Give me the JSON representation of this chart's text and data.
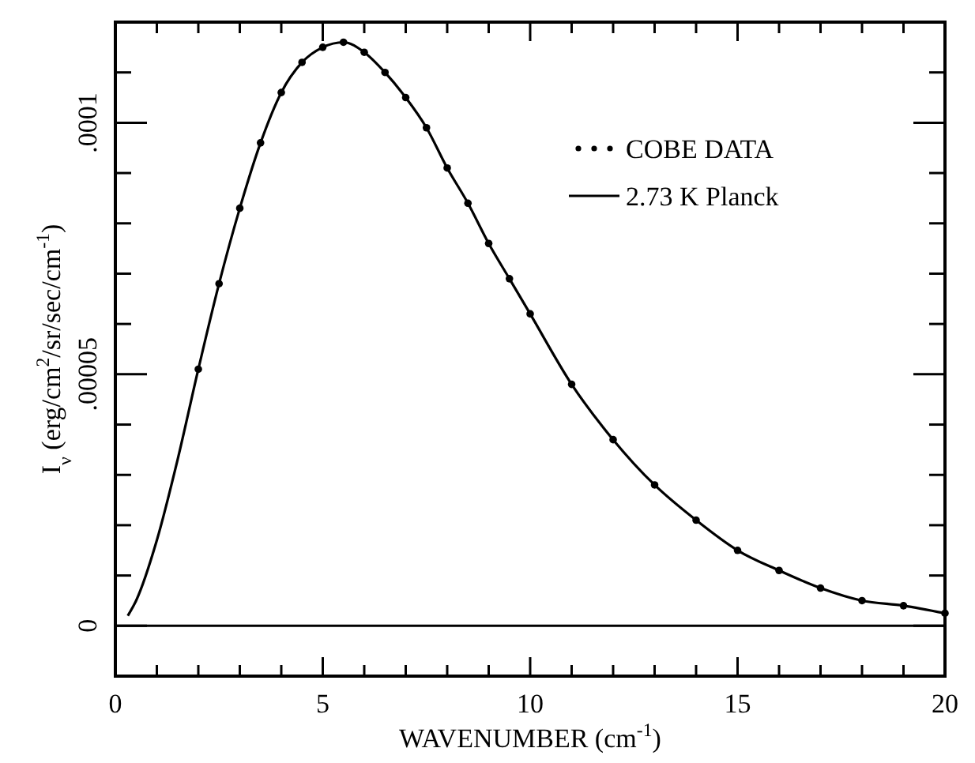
{
  "chart_data": {
    "type": "line",
    "xlabel": "WAVENUMBER (cm$^{-1}$)",
    "ylabel": "I$_{ν}$ (erg/cm$^{2}$/sr/sec/cm$^{-1}$)",
    "xlim": [
      0,
      20
    ],
    "xticks": [
      0,
      {
        "value": 1,
        "label": null
      },
      {
        "value": 2,
        "label": null
      },
      {
        "value": 3,
        "label": null
      },
      {
        "value": 4,
        "label": null
      },
      5,
      {
        "value": 6,
        "label": null
      },
      {
        "value": 7,
        "label": null
      },
      {
        "value": 8,
        "label": null
      },
      {
        "value": 9,
        "label": null
      },
      10,
      {
        "value": 11,
        "label": null
      },
      {
        "value": 12,
        "label": null
      },
      {
        "value": 13,
        "label": null
      },
      {
        "value": 14,
        "label": null
      },
      15,
      {
        "value": 16,
        "label": null
      },
      {
        "value": 17,
        "label": null
      },
      {
        "value": 18,
        "label": null
      },
      {
        "value": 19,
        "label": null
      },
      20
    ],
    "ylim": [
      -1e-05,
      0.00012
    ],
    "yticks": [
      {
        "value": -1e-05,
        "label": null
      },
      0,
      {
        "value": 1e-05,
        "label": null
      },
      {
        "value": 2e-05,
        "label": null
      },
      {
        "value": 3e-05,
        "label": null
      },
      {
        "value": 4e-05,
        "label": null
      },
      {
        "value": 5e-05,
        "label": ".00005"
      },
      {
        "value": 6e-05,
        "label": null
      },
      {
        "value": 7e-05,
        "label": null
      },
      {
        "value": 8e-05,
        "label": null
      },
      {
        "value": 9e-05,
        "label": null
      },
      {
        "value": 0.0001,
        "label": ".0001"
      },
      {
        "value": 0.00011,
        "label": null
      }
    ],
    "ref_lines": [
      {
        "axis": "y",
        "value": 0,
        "color": "#000000"
      }
    ],
    "legend": "top right",
    "series": [
      {
        "name": "COBE DATA",
        "type": "scatter",
        "marker": "circle",
        "color": "#000000",
        "x": [
          2,
          2.5,
          3,
          3.5,
          4,
          4.5,
          5,
          5.5,
          6,
          6.5,
          7,
          7.5,
          8,
          8.5,
          9,
          9.5,
          10,
          11,
          12,
          13,
          14,
          15,
          16,
          17,
          18,
          19,
          20
        ],
        "values": [
          5.1e-05,
          6.8e-05,
          8.3e-05,
          9.6e-05,
          0.000106,
          0.000112,
          0.000115,
          0.000116,
          0.000114,
          0.00011,
          0.000105,
          9.9e-05,
          9.1e-05,
          8.4e-05,
          7.6e-05,
          6.9e-05,
          6.2e-05,
          4.8e-05,
          3.7e-05,
          2.8e-05,
          2.1e-05,
          1.5e-05,
          1.1e-05,
          7.5e-06,
          5e-06,
          4e-06,
          2.5e-06
        ]
      },
      {
        "name": "2.73 K Planck",
        "line_style": "solid",
        "marker": "none",
        "color": "#000000",
        "x": [
          0.3,
          0.5,
          1,
          1.5,
          2,
          2.5,
          3,
          3.5,
          4,
          4.5,
          5,
          5.5,
          6,
          6.5,
          7,
          7.5,
          8,
          8.5,
          9,
          9.5,
          10,
          11,
          12,
          13,
          14,
          15,
          16,
          17,
          18,
          19,
          20
        ],
        "values": [
          2e-06,
          5e-06,
          1.7e-05,
          3.3e-05,
          5.1e-05,
          6.8e-05,
          8.3e-05,
          9.6e-05,
          0.000106,
          0.000112,
          0.000115,
          0.000116,
          0.000114,
          0.00011,
          0.000105,
          9.9e-05,
          9.1e-05,
          8.4e-05,
          7.6e-05,
          6.9e-05,
          6.2e-05,
          4.8e-05,
          3.7e-05,
          2.8e-05,
          2.1e-05,
          1.5e-05,
          1.1e-05,
          7.5e-06,
          5e-06,
          4e-06,
          2.5e-06
        ]
      }
    ]
  }
}
